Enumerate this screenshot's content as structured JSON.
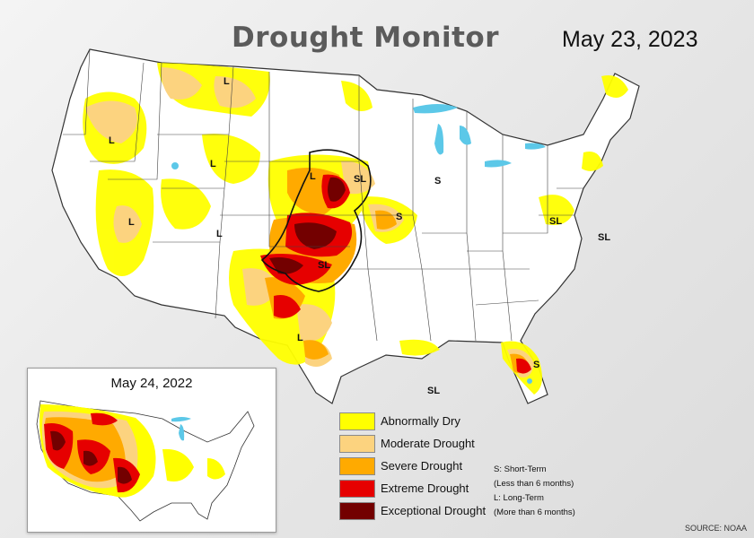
{
  "map": {
    "title": "Drought Monitor",
    "date": "May 23, 2023",
    "inset_date": "May 24, 2022",
    "source": "SOURCE: NOAA"
  },
  "legend": [
    {
      "label": "Abnormally Dry",
      "color": "#ffff00"
    },
    {
      "label": "Moderate Drought",
      "color": "#fcd37f"
    },
    {
      "label": "Severe Drought",
      "color": "#ffaa00"
    },
    {
      "label": "Extreme Drought",
      "color": "#e60000"
    },
    {
      "label": "Exceptional Drought",
      "color": "#730000"
    }
  ],
  "impact_types": {
    "short_term": "S: Short-Term",
    "short_term_note": "(Less than 6 months)",
    "long_term": "L: Long-Term",
    "long_term_note": "(More than 6 months)"
  },
  "impact_labels": {
    "l": "L",
    "s": "S",
    "sl": "SL"
  },
  "colors": {
    "land": "#ffffff",
    "borders": "#3a3a3a",
    "water": "#5cc8e8"
  }
}
